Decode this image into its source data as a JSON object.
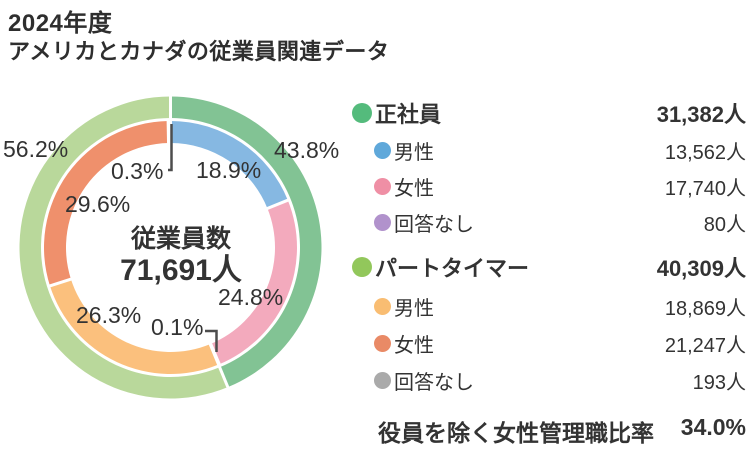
{
  "header": {
    "year": "2024年度",
    "subtitle": "アメリカとカナダの従業員関連データ"
  },
  "chart_data": {
    "type": "donut",
    "center": {
      "label": "従業員数",
      "value": "71,691人"
    },
    "outer_ring": [
      {
        "name": "正社員",
        "percent": 43.8,
        "label": "43.8%",
        "color": "#82c394"
      },
      {
        "name": "パートタイマー",
        "percent": 56.2,
        "label": "56.2%",
        "color": "#b9d89b"
      }
    ],
    "inner_ring": [
      {
        "name": "正社員 男性",
        "percent": 18.9,
        "label": "18.9%",
        "color": "#86b8e2"
      },
      {
        "name": "正社員 女性",
        "percent": 24.8,
        "label": "24.8%",
        "color": "#f3aabd"
      },
      {
        "name": "正社員 回答なし",
        "percent": 0.1,
        "label": "0.1%",
        "color": "#b496ce"
      },
      {
        "name": "パートタイマー 男性",
        "percent": 26.3,
        "label": "26.3%",
        "color": "#fbc07d"
      },
      {
        "name": "パートタイマー 女性",
        "percent": 29.6,
        "label": "29.6%",
        "color": "#ef906c"
      },
      {
        "name": "パートタイマー 回答なし",
        "percent": 0.3,
        "label": "0.3%",
        "color": "#b3b3b3"
      }
    ]
  },
  "legend": {
    "groups": [
      {
        "label": "正社員",
        "value": "31,382人",
        "color": "#54bb7c",
        "items": [
          {
            "label": "男性",
            "value": "13,562人",
            "color": "#5fa8da"
          },
          {
            "label": "女性",
            "value": "17,740人",
            "color": "#ef8fa5"
          },
          {
            "label": "回答なし",
            "value": "80人",
            "color": "#b192cc"
          }
        ]
      },
      {
        "label": "パートタイマー",
        "value": "40,309人",
        "color": "#92c75b",
        "items": [
          {
            "label": "男性",
            "value": "18,869人",
            "color": "#f9bd72"
          },
          {
            "label": "女性",
            "value": "21,247人",
            "color": "#e98a66"
          },
          {
            "label": "回答なし",
            "value": "193人",
            "color": "#aaaaaa"
          }
        ]
      }
    ]
  },
  "footer": {
    "label": "役員を除く女性管理職比率",
    "value": "34.0%"
  }
}
